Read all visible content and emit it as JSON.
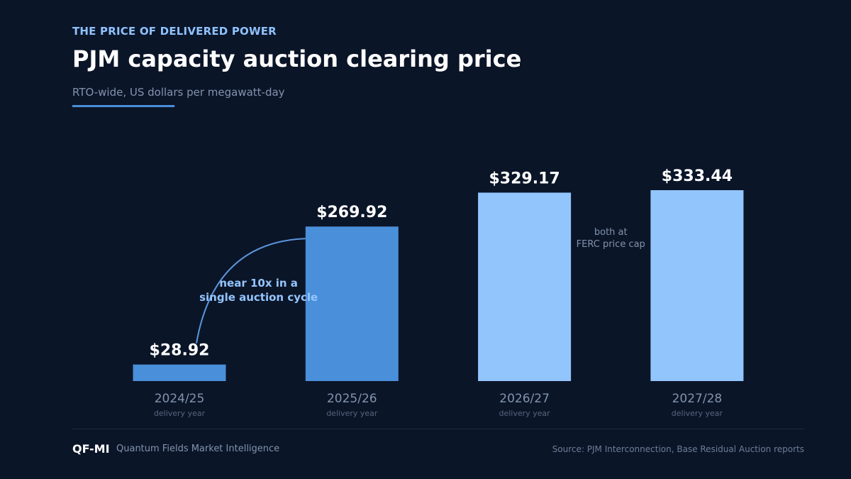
{
  "header": {
    "eyebrow": "THE PRICE OF DELIVERED POWER",
    "title": "PJM capacity auction clearing price",
    "subtitle": "RTO-wide, US dollars per megawatt-day"
  },
  "chart_data": {
    "type": "bar",
    "categories": [
      "2024/25",
      "2025/26",
      "2026/27",
      "2027/28"
    ],
    "category_sublabel": "delivery year",
    "values": [
      28.92,
      269.92,
      329.17,
      333.44
    ],
    "value_labels": [
      "$28.92",
      "$269.92",
      "$329.17",
      "$333.44"
    ],
    "bar_colors": [
      "#4a8fd9",
      "#4a8fd9",
      "#93c5fd",
      "#93c5fd"
    ],
    "ylim": [
      0,
      333.44
    ],
    "grid": false,
    "annotations": [
      {
        "text_lines": [
          "near 10x in a",
          "single auction cycle"
        ],
        "from_index": 0,
        "to_index": 1,
        "color": "#93c5fd"
      },
      {
        "text_lines": [
          "both at",
          "FERC price cap"
        ],
        "between_indices": [
          2,
          3
        ],
        "color": "#8193ad"
      }
    ]
  },
  "footer": {
    "brand": "QF-MI",
    "brand_name": "Quantum Fields Market Intelligence",
    "source": "Source: PJM Interconnection, Base Residual Auction reports"
  },
  "colors": {
    "background": "#0b1528",
    "accent": "#4a8fd9",
    "highlight": "#93c5fd",
    "muted": "#8193ad"
  }
}
